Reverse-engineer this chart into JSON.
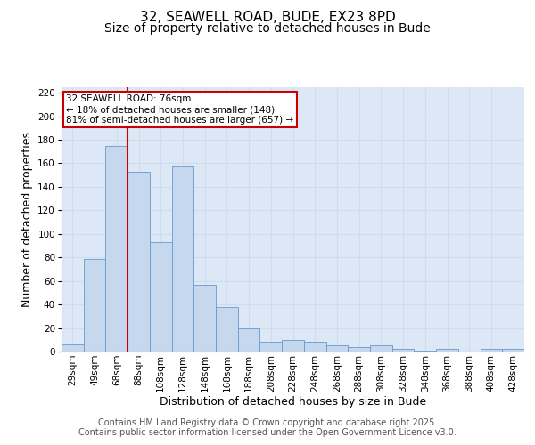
{
  "title_line1": "32, SEAWELL ROAD, BUDE, EX23 8PD",
  "title_line2": "Size of property relative to detached houses in Bude",
  "xlabel": "Distribution of detached houses by size in Bude",
  "ylabel": "Number of detached properties",
  "categories": [
    "29sqm",
    "49sqm",
    "68sqm",
    "88sqm",
    "108sqm",
    "128sqm",
    "148sqm",
    "168sqm",
    "188sqm",
    "208sqm",
    "228sqm",
    "248sqm",
    "268sqm",
    "288sqm",
    "308sqm",
    "328sqm",
    "348sqm",
    "368sqm",
    "388sqm",
    "408sqm",
    "428sqm"
  ],
  "values": [
    6,
    79,
    175,
    153,
    93,
    157,
    57,
    38,
    20,
    8,
    10,
    8,
    5,
    4,
    5,
    2,
    1,
    2,
    0,
    2,
    2
  ],
  "bar_color": "#c5d8ee",
  "bar_edge_color": "#6699cc",
  "property_line_color": "#cc0000",
  "property_line_index": 2.5,
  "annotation_line1": "32 SEAWELL ROAD: 76sqm",
  "annotation_line2": "← 18% of detached houses are smaller (148)",
  "annotation_line3": "81% of semi-detached houses are larger (657) →",
  "annotation_box_color": "#cc0000",
  "ylim": [
    0,
    225
  ],
  "yticks": [
    0,
    20,
    40,
    60,
    80,
    100,
    120,
    140,
    160,
    180,
    200,
    220
  ],
  "grid_color": "#d0dcec",
  "background_color": "#dce8f5",
  "footer_line1": "Contains HM Land Registry data © Crown copyright and database right 2025.",
  "footer_line2": "Contains public sector information licensed under the Open Government Licence v3.0.",
  "title_fontsize": 11,
  "subtitle_fontsize": 10,
  "xlabel_fontsize": 9,
  "ylabel_fontsize": 9,
  "tick_fontsize": 7.5,
  "footer_fontsize": 7,
  "annot_fontsize": 7.5
}
